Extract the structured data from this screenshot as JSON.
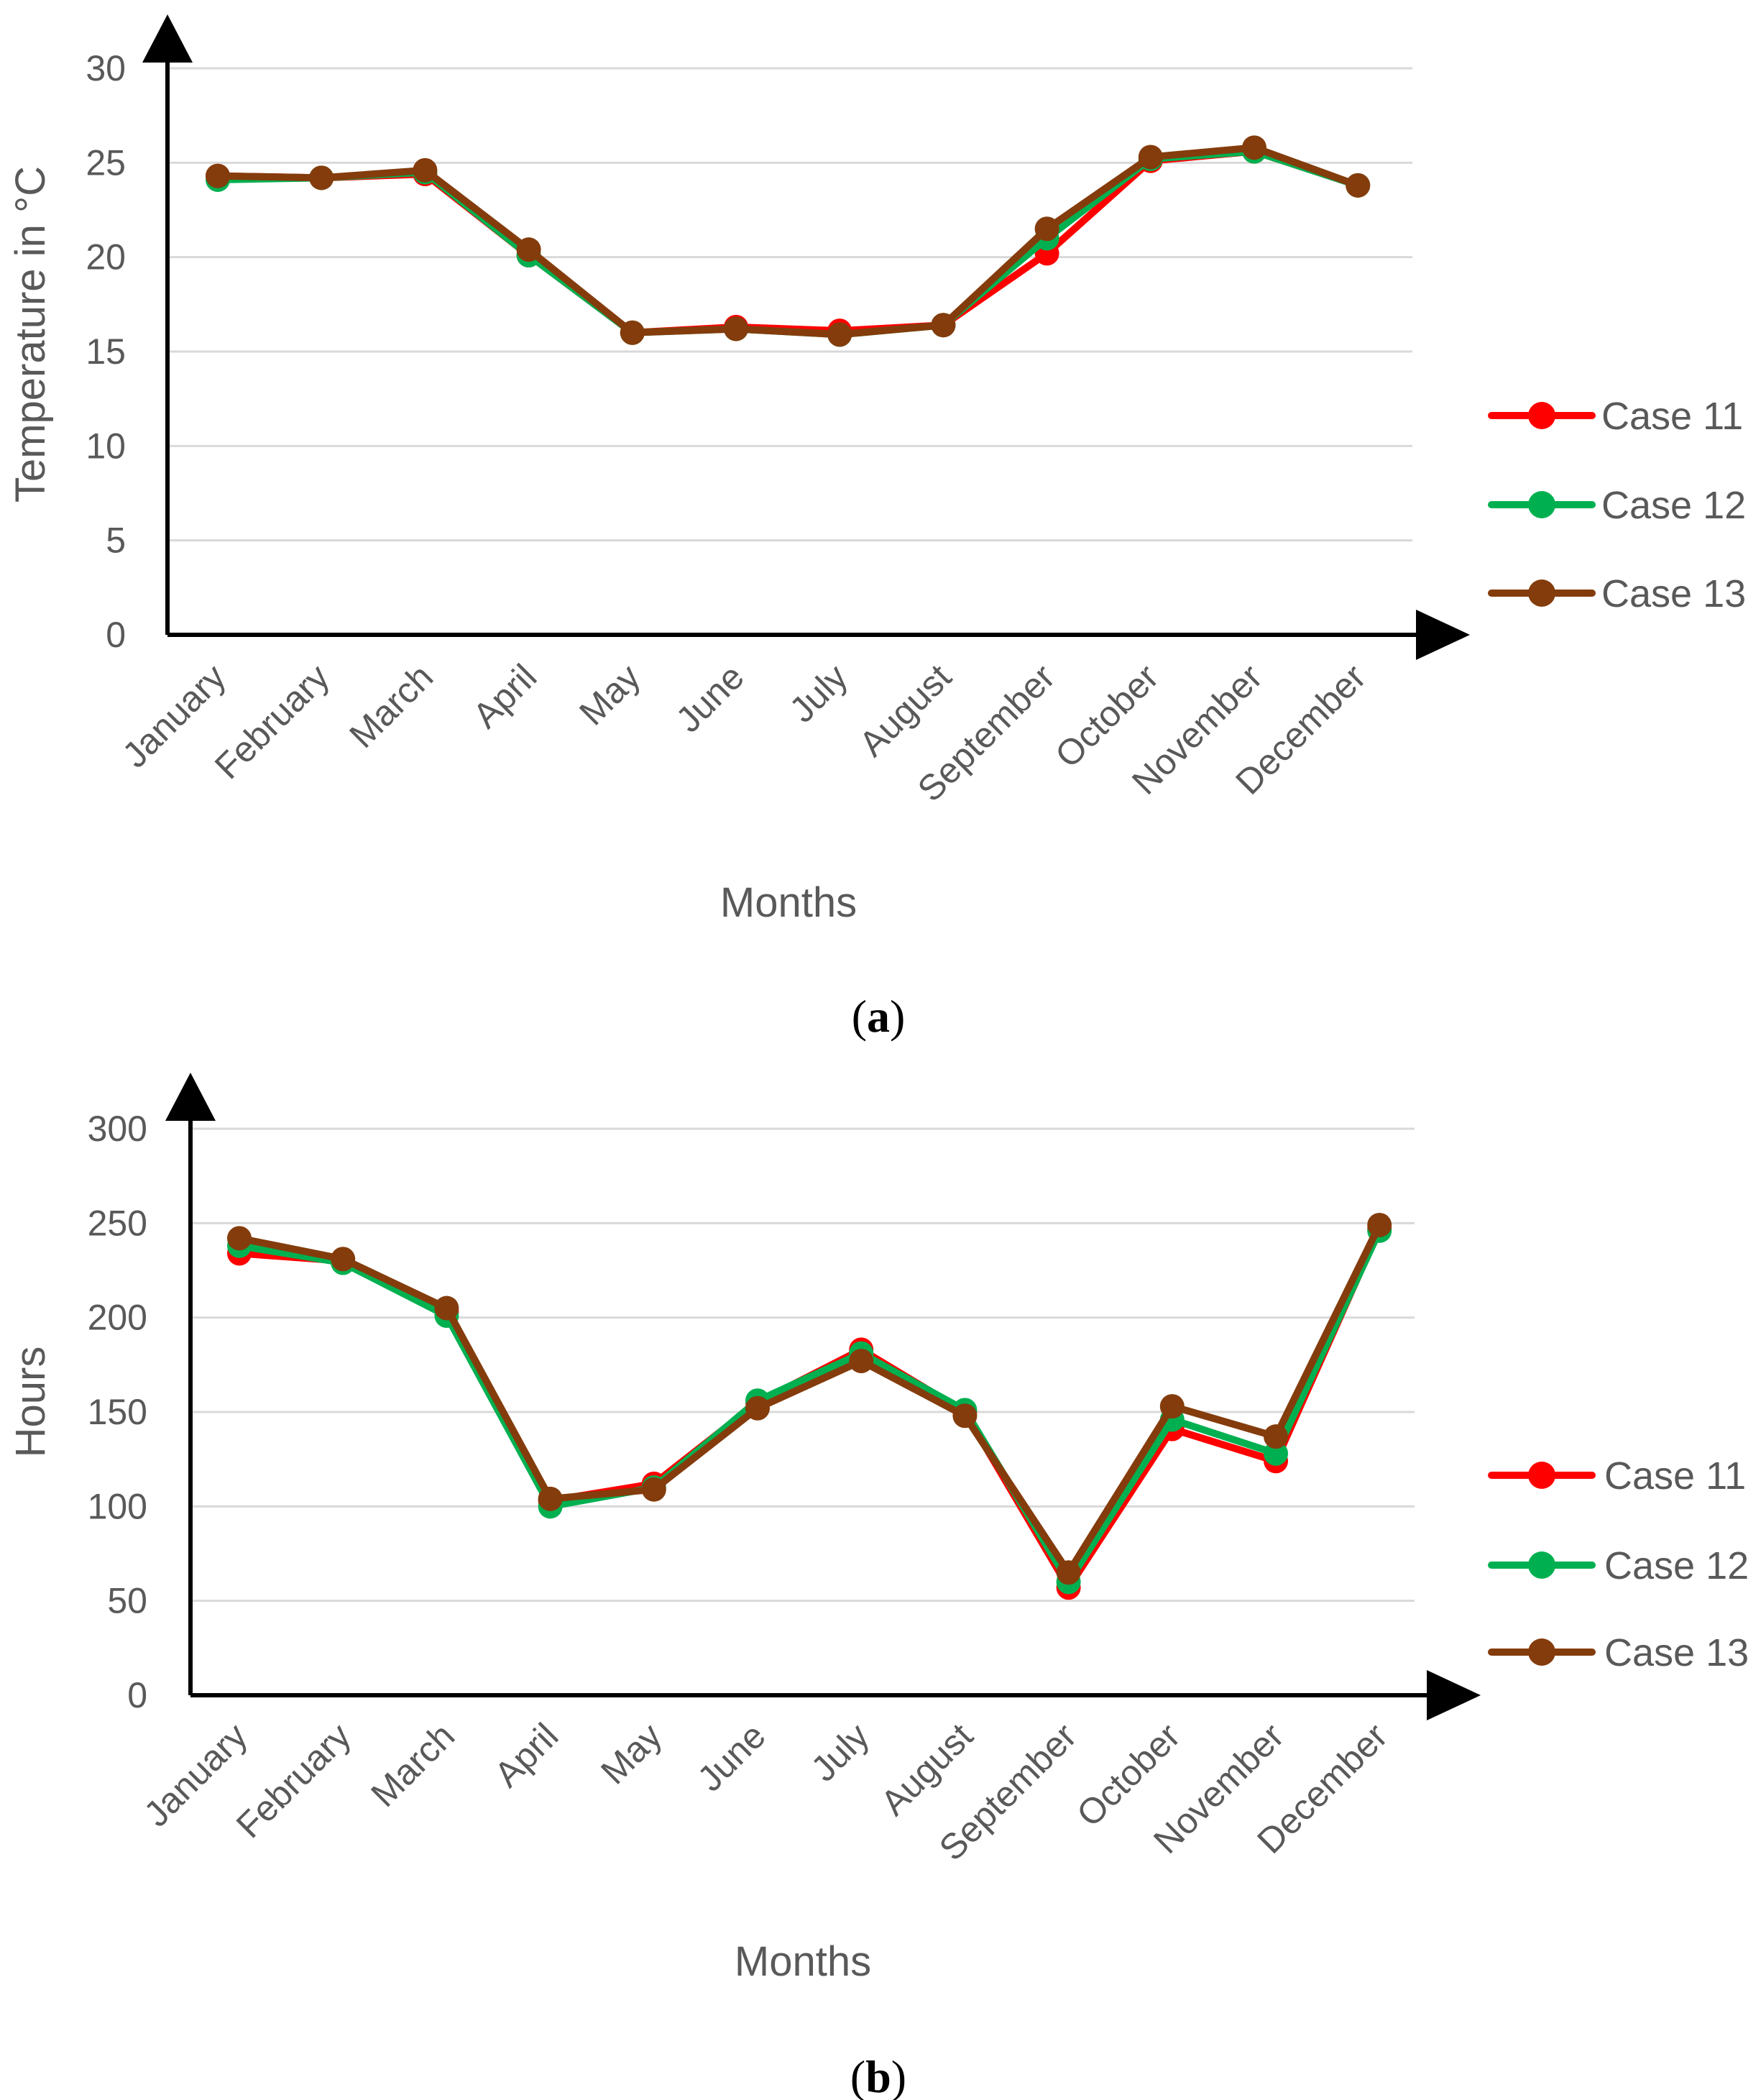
{
  "colors": {
    "case11": "#ff0000",
    "case12": "#00b050",
    "case13": "#843c0c",
    "text": "#595959",
    "grid": "#d9d9d9",
    "axis": "#000000"
  },
  "chart_data": [
    {
      "type": "line",
      "panel_label": "a",
      "title": "",
      "xlabel": "Months",
      "ylabel": "Temperature in °C",
      "ylim": [
        0,
        30
      ],
      "yticks": [
        0,
        5,
        10,
        15,
        20,
        25,
        30
      ],
      "grid": true,
      "legend_position": "right",
      "categories": [
        "January",
        "February",
        "March",
        "April",
        "May",
        "June",
        "July",
        "August",
        "September",
        "October",
        "November",
        "December"
      ],
      "series": [
        {
          "name": "Case 11",
          "color_key": "case11",
          "values": [
            24.3,
            24.2,
            24.4,
            20.1,
            16.0,
            16.3,
            16.1,
            16.4,
            20.2,
            25.1,
            25.6,
            23.8
          ]
        },
        {
          "name": "Case 12",
          "color_key": "case12",
          "values": [
            24.1,
            24.2,
            24.5,
            20.1,
            16.0,
            16.2,
            15.9,
            16.4,
            21.0,
            25.2,
            25.6,
            23.8
          ]
        },
        {
          "name": "Case 13",
          "color_key": "case13",
          "values": [
            24.3,
            24.2,
            24.6,
            20.4,
            16.0,
            16.2,
            15.9,
            16.4,
            21.5,
            25.3,
            25.8,
            23.8
          ]
        }
      ]
    },
    {
      "type": "line",
      "panel_label": "b",
      "title": "",
      "xlabel": "Months",
      "ylabel": "Hours",
      "ylim": [
        0,
        300
      ],
      "yticks": [
        0,
        50,
        100,
        150,
        200,
        250,
        300
      ],
      "grid": true,
      "legend_position": "right",
      "categories": [
        "January",
        "February",
        "March",
        "April",
        "May",
        "June",
        "July",
        "August",
        "September",
        "October",
        "November",
        "December"
      ],
      "series": [
        {
          "name": "Case 11",
          "color_key": "case11",
          "values": [
            234,
            230,
            203,
            103,
            112,
            155,
            183,
            150,
            57,
            141,
            124,
            247
          ]
        },
        {
          "name": "Case 12",
          "color_key": "case12",
          "values": [
            238,
            229,
            201,
            100,
            110,
            156,
            181,
            151,
            60,
            146,
            128,
            246
          ]
        },
        {
          "name": "Case 13",
          "color_key": "case13",
          "values": [
            242,
            231,
            205,
            104,
            109,
            152,
            177,
            148,
            65,
            153,
            137,
            249
          ]
        }
      ]
    }
  ]
}
